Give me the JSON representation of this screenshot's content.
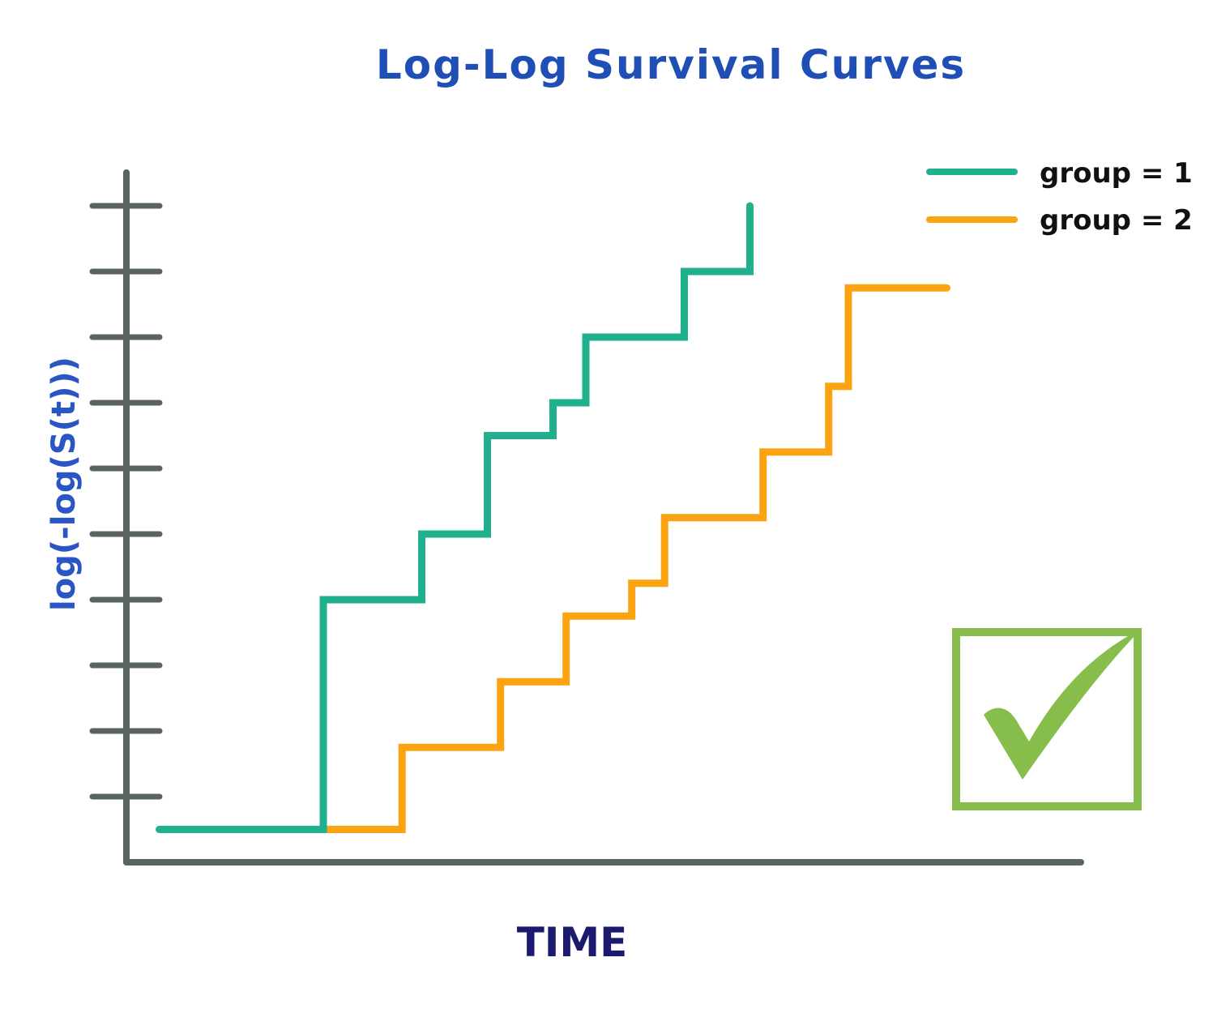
{
  "chart_data": {
    "type": "line",
    "title": "Log-Log Survival Curves",
    "xlabel": "TIME",
    "ylabel": "log(-log(S(t)))",
    "xlim": [
      0,
      14.5
    ],
    "ylim": [
      0,
      10.5
    ],
    "y_ticks": [
      1,
      2,
      3,
      4,
      5,
      6,
      7,
      8,
      9,
      10
    ],
    "tick_labels_shown": false,
    "grid": false,
    "legend_position": "top-right",
    "colors": {
      "axis": "#596462",
      "group1": "#21b08e",
      "group2": "#fca311",
      "check": "#86bd4b"
    },
    "series": [
      {
        "name": "group = 1",
        "step": true,
        "x": [
          0.5,
          3.0,
          3.0,
          4.5,
          4.5,
          5.5,
          5.5,
          6.5,
          6.5,
          7.0,
          7.0,
          8.5,
          8.5,
          9.5,
          9.5
        ],
        "y": [
          0.5,
          0.5,
          4.0,
          4.0,
          5.0,
          5.0,
          6.5,
          6.5,
          7.0,
          7.0,
          8.0,
          8.0,
          9.0,
          9.0,
          10.0
        ]
      },
      {
        "name": "group = 2",
        "step": true,
        "x": [
          3.0,
          4.2,
          4.2,
          5.7,
          5.7,
          6.7,
          6.7,
          7.7,
          7.7,
          8.2,
          8.2,
          9.7,
          9.7,
          10.7,
          10.7,
          11.0,
          11.0,
          12.5
        ],
        "y": [
          0.5,
          0.5,
          1.75,
          1.75,
          2.75,
          2.75,
          3.75,
          3.75,
          4.25,
          4.25,
          5.25,
          5.25,
          6.25,
          6.25,
          7.25,
          7.25,
          8.75,
          8.75
        ]
      }
    ],
    "annotation": "check-mark-icon"
  }
}
